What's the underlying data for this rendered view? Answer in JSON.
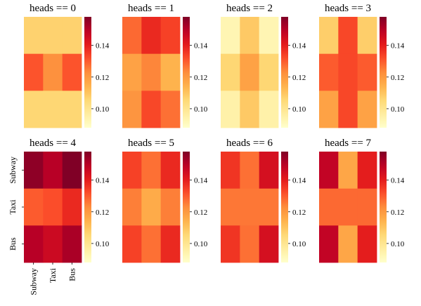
{
  "chart_data": {
    "type": "heatmap",
    "colormap": "YlOrRd",
    "colorbar_ticks": [
      "0.10",
      "0.12",
      "0.14"
    ],
    "colorbar_tick_values": [
      0.1,
      0.12,
      0.14
    ],
    "color_range": [
      0.088,
      0.158
    ],
    "rows": [
      "Subway",
      "Taxi",
      "Bus"
    ],
    "cols": [
      "Subway",
      "Taxi",
      "Bus"
    ],
    "panels": [
      {
        "title": "heads == 0",
        "values": [
          [
            0.107,
            0.107,
            0.107
          ],
          [
            0.131,
            0.122,
            0.131
          ],
          [
            0.106,
            0.106,
            0.106
          ]
        ]
      },
      {
        "title": "heads == 1",
        "values": [
          [
            0.128,
            0.138,
            0.134
          ],
          [
            0.118,
            0.124,
            0.114
          ],
          [
            0.121,
            0.133,
            0.127
          ]
        ]
      },
      {
        "title": "heads == 2",
        "values": [
          [
            0.093,
            0.109,
            0.093
          ],
          [
            0.106,
            0.118,
            0.106
          ],
          [
            0.095,
            0.109,
            0.095
          ]
        ]
      },
      {
        "title": "heads == 3",
        "values": [
          [
            0.108,
            0.133,
            0.108
          ],
          [
            0.13,
            0.133,
            0.13
          ],
          [
            0.118,
            0.133,
            0.118
          ]
        ]
      },
      {
        "title": "heads == 4",
        "values": [
          [
            0.156,
            0.15,
            0.158
          ],
          [
            0.13,
            0.132,
            0.138
          ],
          [
            0.15,
            0.146,
            0.152
          ]
        ]
      },
      {
        "title": "heads == 5",
        "values": [
          [
            0.134,
            0.127,
            0.138
          ],
          [
            0.125,
            0.116,
            0.125
          ],
          [
            0.134,
            0.127,
            0.138
          ]
        ]
      },
      {
        "title": "heads == 6",
        "values": [
          [
            0.136,
            0.127,
            0.144
          ],
          [
            0.126,
            0.126,
            0.126
          ],
          [
            0.136,
            0.127,
            0.144
          ]
        ]
      },
      {
        "title": "heads == 7",
        "values": [
          [
            0.148,
            0.117,
            0.14
          ],
          [
            0.128,
            0.128,
            0.128
          ],
          [
            0.148,
            0.117,
            0.14
          ]
        ]
      }
    ]
  }
}
